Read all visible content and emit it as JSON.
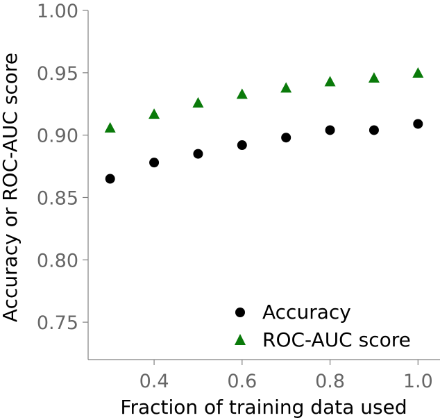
{
  "chart_data": {
    "type": "scatter",
    "xlabel": "Fraction of training data used",
    "ylabel": "Accuracy or ROC-AUC score",
    "xlim": [
      0.25,
      1.05
    ],
    "ylim": [
      0.72,
      1.0
    ],
    "xticks": [
      "0.4",
      "0.6",
      "0.8",
      "1.0"
    ],
    "yticks": [
      "0.75",
      "0.80",
      "0.85",
      "0.90",
      "0.95",
      "1.00"
    ],
    "grid": false,
    "legend_position": "bottom-right",
    "series": [
      {
        "name": "Accuracy",
        "marker": "circle",
        "color": "#000000",
        "x": [
          0.3,
          0.4,
          0.5,
          0.6,
          0.7,
          0.8,
          0.9,
          1.0
        ],
        "y": [
          0.865,
          0.878,
          0.885,
          0.892,
          0.898,
          0.904,
          0.904,
          0.909
        ]
      },
      {
        "name": "ROC-AUC score",
        "marker": "triangle",
        "color": "#0a7a0a",
        "x": [
          0.3,
          0.4,
          0.5,
          0.6,
          0.7,
          0.8,
          0.9,
          1.0
        ],
        "y": [
          0.906,
          0.917,
          0.926,
          0.933,
          0.938,
          0.943,
          0.946,
          0.95
        ]
      }
    ]
  }
}
